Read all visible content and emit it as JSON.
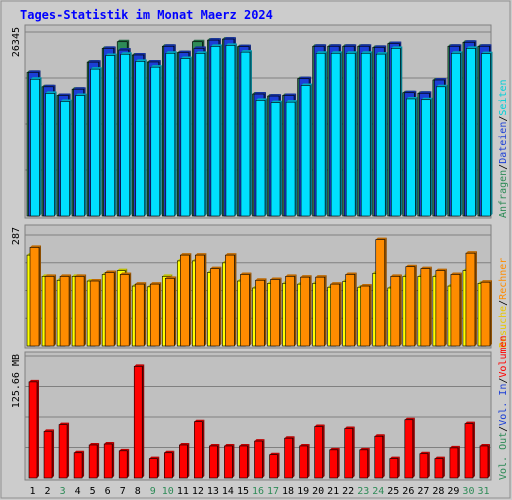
{
  "chart_data": {
    "type": "bar",
    "title": "Tages-Statistik im Monat Maerz 2024",
    "categories": [
      "1",
      "2",
      "3",
      "4",
      "5",
      "6",
      "7",
      "8",
      "9",
      "10",
      "11",
      "12",
      "13",
      "14",
      "15",
      "16",
      "17",
      "18",
      "19",
      "20",
      "21",
      "22",
      "23",
      "24",
      "25",
      "26",
      "27",
      "28",
      "29",
      "30",
      "31"
    ],
    "weekend_days": [
      "3",
      "9",
      "10",
      "16",
      "17",
      "23",
      "24",
      "30",
      "31"
    ],
    "panels": [
      {
        "id": "top",
        "ymax_label": "26345",
        "ymax": 26345,
        "series": [
          {
            "name": "Anfragen",
            "color": "#2e8b57",
            "values": [
              20560,
              18500,
              17250,
              18150,
              22030,
              24000,
              24950,
              23050,
              22050,
              24300,
              23400,
              24950,
              25180,
              25330,
              24250,
              17460,
              17170,
              17260,
              19670,
              24300,
              24300,
              24300,
              24300,
              24150,
              24690,
              17650,
              17570,
              19470,
              24300,
              24870,
              24300
            ]
          },
          {
            "name": "Dateien",
            "color": "#1c3fd6",
            "values": [
              20560,
              18500,
              17250,
              18150,
              22030,
              24000,
              23760,
              23050,
              22050,
              24300,
              23400,
              24000,
              25180,
              25330,
              24250,
              17460,
              17170,
              17260,
              19670,
              24300,
              24300,
              24300,
              24300,
              24150,
              24690,
              17650,
              17570,
              19470,
              24300,
              24870,
              24300
            ]
          },
          {
            "name": "Seiten",
            "color": "#00e0ff",
            "values": [
              19580,
              17550,
              16400,
              17250,
              21030,
              22980,
              23160,
              22140,
              21310,
              23300,
              22550,
              23290,
              24290,
              24430,
              23460,
              16550,
              16230,
              16300,
              18680,
              23300,
              23300,
              23300,
              23300,
              23180,
              24000,
              16760,
              16650,
              18500,
              23300,
              24000,
              23250
            ]
          }
        ]
      },
      {
        "id": "middle",
        "ymax_label": "287",
        "ymax": 287,
        "series": [
          {
            "name": "Besuche",
            "color": "#ffff00",
            "values": [
              235,
              180,
              170,
              180,
              168,
              185,
              195,
              155,
              153,
              180,
              220,
              220,
              190,
              215,
              168,
              150,
              162,
              162,
              160,
              162,
              152,
              167,
              152,
              188,
              150,
              180,
              180,
              180,
              155,
              195,
              162
            ]
          },
          {
            "name": "Rechner",
            "color": "#ff8c00",
            "values": [
              255,
              180,
              180,
              180,
              168,
              190,
              185,
              160,
              160,
              175,
              235,
              235,
              200,
              235,
              185,
              170,
              172,
              180,
              178,
              178,
              160,
              185,
              155,
              275,
              180,
              205,
              200,
              195,
              185,
              240,
              165
            ]
          }
        ]
      },
      {
        "id": "bottom",
        "ymax_label": "125.66 MB",
        "ymax": 125.66,
        "series": [
          {
            "name": "Vol. Out",
            "color": "#2e8b57",
            "values": []
          },
          {
            "name": "Vol. In",
            "color": "#1c3fd6",
            "values": []
          },
          {
            "name": "Volumen",
            "color": "#ff0000",
            "values": [
              99,
              48,
              55,
              26,
              34,
              35,
              28,
              115,
              20,
              26,
              34,
              58,
              33,
              33,
              33,
              38,
              24,
              41,
              33,
              53,
              29,
              51,
              29,
              43,
              20,
              60,
              25,
              20,
              31,
              56,
              33
            ]
          }
        ]
      }
    ],
    "legend": {
      "placement": "right",
      "top": [
        {
          "text": "Anfragen",
          "color": "#2e8b57"
        },
        {
          "text": "Dateien",
          "color": "#1c3fd6"
        },
        {
          "text": "Seiten",
          "color": "#00d0d8"
        }
      ],
      "middle": [
        {
          "text": "Besuche",
          "color": "#e8c800"
        },
        {
          "text": "Rechner",
          "color": "#ff8c00"
        }
      ],
      "bottom": [
        {
          "text": "Vol. Out",
          "color": "#2e8b57"
        },
        {
          "text": "Vol. In",
          "color": "#1c3fd6"
        },
        {
          "text": "Volumen",
          "color": "#ff0000"
        }
      ]
    },
    "legend_separator": "/"
  }
}
